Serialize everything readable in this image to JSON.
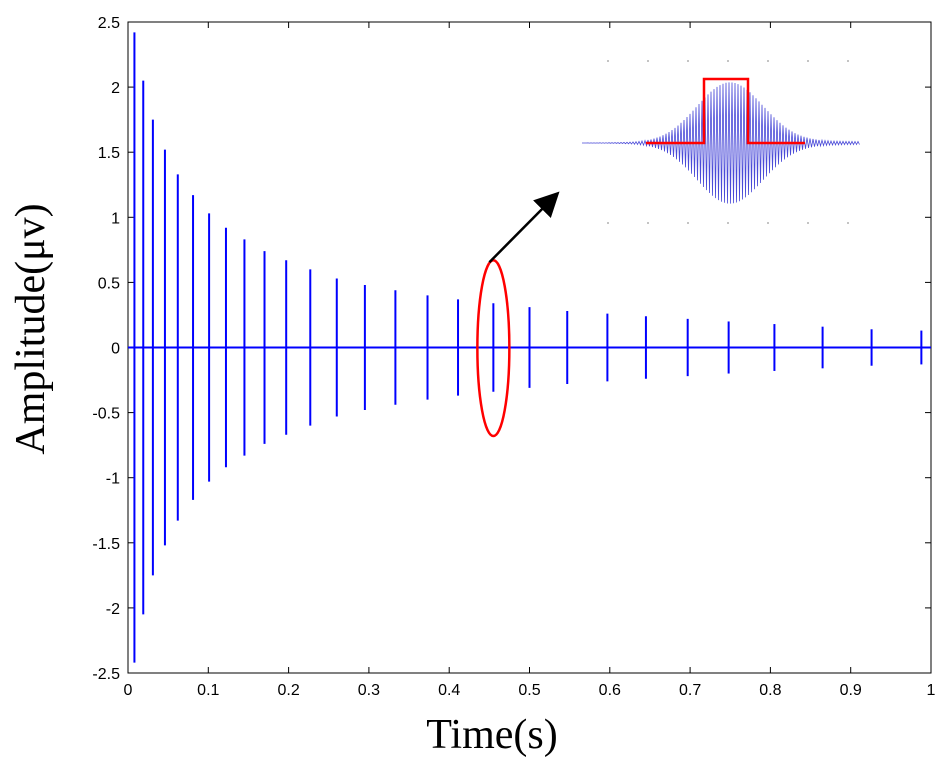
{
  "chart_data": {
    "type": "line",
    "title": "",
    "xlabel": "Time(s)",
    "ylabel": "Amplitude(μv)",
    "xlim": [
      0,
      1
    ],
    "ylim": [
      -2.5,
      2.5
    ],
    "xticks": [
      0,
      0.1,
      0.2,
      0.3,
      0.4,
      0.5,
      0.6,
      0.7,
      0.8,
      0.9,
      1
    ],
    "xtick_labels": [
      "0",
      "0.1",
      "0.2",
      "0.3",
      "0.4",
      "0.5",
      "0.6",
      "0.7",
      "0.8",
      "0.9",
      "1"
    ],
    "yticks": [
      2.5,
      2,
      1.5,
      1,
      0.5,
      0,
      -0.5,
      -1,
      -1.5,
      -2,
      -2.5
    ],
    "ytick_labels": [
      "2.5",
      "2",
      "1.5",
      "1",
      "0.5",
      "0",
      "-0.5",
      "-1",
      "-1.5",
      "-2",
      "-2.5"
    ],
    "grid": false,
    "series_color": "#0000ff",
    "annotation_color": "#ff0000",
    "spikes": {
      "x": [
        0.008,
        0.019,
        0.031,
        0.046,
        0.062,
        0.081,
        0.101,
        0.122,
        0.145,
        0.17,
        0.197,
        0.227,
        0.26,
        0.295,
        0.333,
        0.373,
        0.411,
        0.455,
        0.5,
        0.547,
        0.597,
        0.645,
        0.697,
        0.748,
        0.805,
        0.865,
        0.926,
        0.988
      ],
      "y": [
        2.42,
        2.05,
        1.75,
        1.52,
        1.33,
        1.17,
        1.03,
        0.92,
        0.83,
        0.74,
        0.67,
        0.6,
        0.53,
        0.48,
        0.44,
        0.4,
        0.37,
        0.34,
        0.31,
        0.28,
        0.26,
        0.24,
        0.22,
        0.2,
        0.18,
        0.16,
        0.14,
        0.13
      ]
    },
    "highlight": {
      "x": 0.455,
      "y_range": [
        -0.68,
        0.67
      ]
    },
    "inset": {
      "description_free": true
    }
  }
}
